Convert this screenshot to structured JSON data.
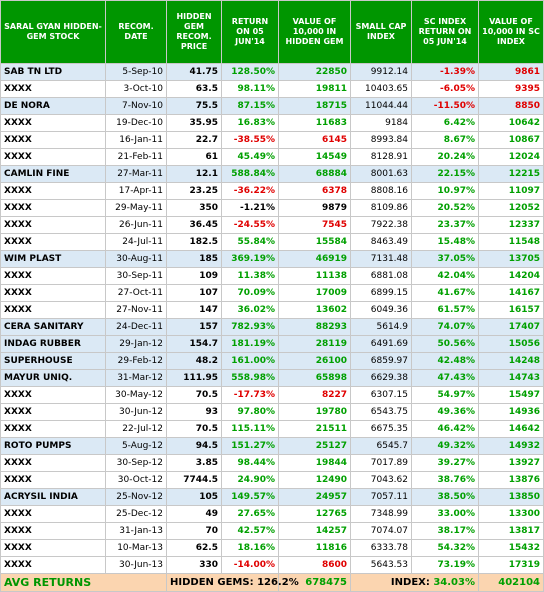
{
  "headers": {
    "stock": "SARAL GYAN HIDDEN-GEM STOCK",
    "date": "RECOM. DATE",
    "price": "HIDDEN GEM RECOM. PRICE",
    "return": "RETURN ON 05 JUN'14",
    "value": "VALUE OF 10,000 IN HIDDEN GEM",
    "index": "SMALL CAP INDEX",
    "sc_return": "SC INDEX RETURN ON 05 JUN'14",
    "sc_value": "VALUE OF 10,000 IN SC INDEX"
  },
  "rows": [
    {
      "stock": "SAB TN LTD",
      "date": "5-Sep-10",
      "price": "41.75",
      "return": "128.50%",
      "value": "22850",
      "index": "9912.14",
      "sc_return": "-1.39%",
      "sc_value": "9861",
      "hl": true
    },
    {
      "stock": "XXXX",
      "date": "3-Oct-10",
      "price": "63.5",
      "return": "98.11%",
      "value": "19811",
      "index": "10403.65",
      "sc_return": "-6.05%",
      "sc_value": "9395",
      "hl": false
    },
    {
      "stock": "DE NORA",
      "date": "7-Nov-10",
      "price": "75.5",
      "return": "87.15%",
      "value": "18715",
      "index": "11044.44",
      "sc_return": "-11.50%",
      "sc_value": "8850",
      "hl": true
    },
    {
      "stock": "XXXX",
      "date": "19-Dec-10",
      "price": "35.95",
      "return": "16.83%",
      "value": "11683",
      "index": "9184",
      "sc_return": "6.42%",
      "sc_value": "10642",
      "hl": false
    },
    {
      "stock": "XXXX",
      "date": "16-Jan-11",
      "price": "22.7",
      "return": "-38.55%",
      "value": "6145",
      "index": "8993.84",
      "sc_return": "8.67%",
      "sc_value": "10867",
      "hl": false
    },
    {
      "stock": "XXXX",
      "date": "21-Feb-11",
      "price": "61",
      "return": "45.49%",
      "value": "14549",
      "index": "8128.91",
      "sc_return": "20.24%",
      "sc_value": "12024",
      "hl": false
    },
    {
      "stock": "CAMLIN FINE",
      "date": "27-Mar-11",
      "price": "12.1",
      "return": "588.84%",
      "value": "68884",
      "index": "8001.63",
      "sc_return": "22.15%",
      "sc_value": "12215",
      "hl": true
    },
    {
      "stock": "XXXX",
      "date": "17-Apr-11",
      "price": "23.25",
      "return": "-36.22%",
      "value": "6378",
      "index": "8808.16",
      "sc_return": "10.97%",
      "sc_value": "11097",
      "hl": false
    },
    {
      "stock": "XXXX",
      "date": "29-May-11",
      "price": "350",
      "return": "-1.21%",
      "value": "9879",
      "index": "8109.86",
      "sc_return": "20.52%",
      "sc_value": "12052",
      "hl": false
    },
    {
      "stock": "XXXX",
      "date": "26-Jun-11",
      "price": "36.45",
      "return": "-24.55%",
      "value": "7545",
      "index": "7922.38",
      "sc_return": "23.37%",
      "sc_value": "12337",
      "hl": false
    },
    {
      "stock": "XXXX",
      "date": "24-Jul-11",
      "price": "182.5",
      "return": "55.84%",
      "value": "15584",
      "index": "8463.49",
      "sc_return": "15.48%",
      "sc_value": "11548",
      "hl": false
    },
    {
      "stock": "WIM PLAST",
      "date": "30-Aug-11",
      "price": "185",
      "return": "369.19%",
      "value": "46919",
      "index": "7131.48",
      "sc_return": "37.05%",
      "sc_value": "13705",
      "hl": true
    },
    {
      "stock": "XXXX",
      "date": "30-Sep-11",
      "price": "109",
      "return": "11.38%",
      "value": "11138",
      "index": "6881.08",
      "sc_return": "42.04%",
      "sc_value": "14204",
      "hl": false
    },
    {
      "stock": "XXXX",
      "date": "27-Oct-11",
      "price": "107",
      "return": "70.09%",
      "value": "17009",
      "index": "6899.15",
      "sc_return": "41.67%",
      "sc_value": "14167",
      "hl": false
    },
    {
      "stock": "XXXX",
      "date": "27-Nov-11",
      "price": "147",
      "return": "36.02%",
      "value": "13602",
      "index": "6049.36",
      "sc_return": "61.57%",
      "sc_value": "16157",
      "hl": false
    },
    {
      "stock": "CERA SANITARY",
      "date": "24-Dec-11",
      "price": "157",
      "return": "782.93%",
      "value": "88293",
      "index": "5614.9",
      "sc_return": "74.07%",
      "sc_value": "17407",
      "hl": true
    },
    {
      "stock": "INDAG RUBBER",
      "date": "29-Jan-12",
      "price": "154.7",
      "return": "181.19%",
      "value": "28119",
      "index": "6491.69",
      "sc_return": "50.56%",
      "sc_value": "15056",
      "hl": true
    },
    {
      "stock": "SUPERHOUSE",
      "date": "29-Feb-12",
      "price": "48.2",
      "return": "161.00%",
      "value": "26100",
      "index": "6859.97",
      "sc_return": "42.48%",
      "sc_value": "14248",
      "hl": true
    },
    {
      "stock": "MAYUR UNIQ.",
      "date": "31-Mar-12",
      "price": "111.95",
      "return": "558.98%",
      "value": "65898",
      "index": "6629.38",
      "sc_return": "47.43%",
      "sc_value": "14743",
      "hl": true
    },
    {
      "stock": "XXXX",
      "date": "30-May-12",
      "price": "70.5",
      "return": "-17.73%",
      "value": "8227",
      "index": "6307.15",
      "sc_return": "54.97%",
      "sc_value": "15497",
      "hl": false
    },
    {
      "stock": "XXXX",
      "date": "30-Jun-12",
      "price": "93",
      "return": "97.80%",
      "value": "19780",
      "index": "6543.75",
      "sc_return": "49.36%",
      "sc_value": "14936",
      "hl": false
    },
    {
      "stock": "XXXX",
      "date": "22-Jul-12",
      "price": "70.5",
      "return": "115.11%",
      "value": "21511",
      "index": "6675.35",
      "sc_return": "46.42%",
      "sc_value": "14642",
      "hl": false
    },
    {
      "stock": "ROTO PUMPS",
      "date": "5-Aug-12",
      "price": "94.5",
      "return": "151.27%",
      "value": "25127",
      "index": "6545.7",
      "sc_return": "49.32%",
      "sc_value": "14932",
      "hl": true
    },
    {
      "stock": "XXXX",
      "date": "30-Sep-12",
      "price": "3.85",
      "return": "98.44%",
      "value": "19844",
      "index": "7017.89",
      "sc_return": "39.27%",
      "sc_value": "13927",
      "hl": false
    },
    {
      "stock": "XXXX",
      "date": "30-Oct-12",
      "price": "7744.5",
      "return": "24.90%",
      "value": "12490",
      "index": "7043.62",
      "sc_return": "38.76%",
      "sc_value": "13876",
      "hl": false
    },
    {
      "stock": "ACRYSIL INDIA",
      "date": "25-Nov-12",
      "price": "105",
      "return": "149.57%",
      "value": "24957",
      "index": "7057.11",
      "sc_return": "38.50%",
      "sc_value": "13850",
      "hl": true
    },
    {
      "stock": "XXXX",
      "date": "25-Dec-12",
      "price": "49",
      "return": "27.65%",
      "value": "12765",
      "index": "7348.99",
      "sc_return": "33.00%",
      "sc_value": "13300",
      "hl": false
    },
    {
      "stock": "XXXX",
      "date": "31-Jan-13",
      "price": "70",
      "return": "42.57%",
      "value": "14257",
      "index": "7074.07",
      "sc_return": "38.17%",
      "sc_value": "13817",
      "hl": false
    },
    {
      "stock": "XXXX",
      "date": "10-Mar-13",
      "price": "62.5",
      "return": "18.16%",
      "value": "11816",
      "index": "6333.78",
      "sc_return": "54.32%",
      "sc_value": "15432",
      "hl": false
    },
    {
      "stock": "XXXX",
      "date": "30-Jun-13",
      "price": "330",
      "return": "-14.00%",
      "value": "8600",
      "index": "5643.53",
      "sc_return": "73.19%",
      "sc_value": "17319",
      "hl": false
    }
  ],
  "footer": {
    "label": "AVG RETURNS",
    "hg_label": "HIDDEN GEMS:",
    "hg_return": "126.2%",
    "hg_value": "678475",
    "idx_label": "INDEX:",
    "idx_return": "34.03%",
    "idx_value": "402104"
  },
  "colors": {
    "header_bg": "#009600",
    "highlight_row": "#dbe9f5",
    "footer_bg": "#fbd5b0",
    "positive": "#00a000",
    "negative": "#e00000"
  }
}
